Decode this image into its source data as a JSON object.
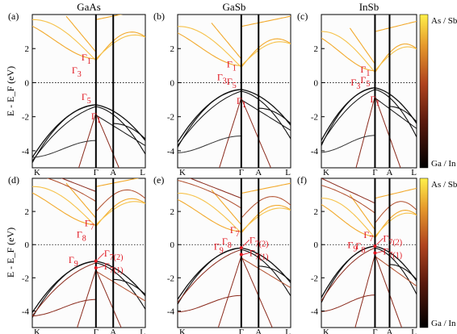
{
  "figure": {
    "ylabel": "E - E_F (eV)",
    "colorbar": {
      "top_label": "As / Sb",
      "bottom_label": "Ga / In"
    },
    "x_ticks": [
      "K",
      "Γ",
      "A",
      "L"
    ],
    "y_ticks": [
      "-4",
      "-2",
      "0",
      "2"
    ]
  },
  "chart_data": [
    {
      "type": "line",
      "panel": "(a)",
      "title": "GaAs",
      "ylim": [
        -5,
        4
      ],
      "xlabel": "",
      "ylabel": "E - E_F (eV)",
      "annotations": [
        {
          "text": "Γ",
          "sub": "1",
          "kind": "CB"
        },
        {
          "text": "Γ",
          "sub": "3",
          "kind": "CB"
        },
        {
          "text": "Γ",
          "sub": "5",
          "kind": "VB"
        },
        {
          "text": "Γ",
          "sub": "1",
          "kind": "VB"
        }
      ],
      "vbm_gamma": -1.3,
      "cbm_gamma": 1.2
    },
    {
      "type": "line",
      "panel": "(b)",
      "title": "GaSb",
      "ylim": [
        -5,
        4
      ],
      "annotations": [
        {
          "text": "Γ",
          "sub": "1",
          "kind": "CB"
        },
        {
          "text": "Γ",
          "sub": "3",
          "kind": "CB"
        },
        {
          "text": "Γ",
          "sub": "5",
          "kind": "VB"
        },
        {
          "text": "Γ",
          "sub": "1",
          "kind": "VB"
        }
      ],
      "vbm_gamma": -0.4,
      "cbm_gamma": 0.8
    },
    {
      "type": "line",
      "panel": "(c)",
      "title": "InSb",
      "ylim": [
        -5,
        4
      ],
      "annotations": [
        {
          "text": "Γ",
          "sub": "1",
          "kind": "CB"
        },
        {
          "text": "Γ",
          "sub": "3",
          "kind": "CB"
        },
        {
          "text": "Γ",
          "sub": "5",
          "kind": "VB"
        },
        {
          "text": "Γ",
          "sub": "1",
          "kind": "VB"
        }
      ],
      "vbm_gamma": -0.3,
      "cbm_gamma": 0.5
    },
    {
      "type": "line",
      "panel": "(d)",
      "ylim": [
        -5,
        4
      ],
      "annotations": [
        {
          "text": "Γ",
          "sub": "7",
          "kind": "CB"
        },
        {
          "text": "Γ",
          "sub": "8",
          "kind": "CB"
        },
        {
          "text": "Γ",
          "sub": "9",
          "kind": "VB"
        },
        {
          "text": "Γ",
          "sub": "7(2)",
          "kind": "VB"
        },
        {
          "text": "Γ",
          "sub": "7(1)",
          "kind": "VB"
        }
      ],
      "vbm_gamma": -1.0,
      "cbm_gamma": 1.0
    },
    {
      "type": "line",
      "panel": "(e)",
      "ylim": [
        -5,
        4
      ],
      "annotations": [
        {
          "text": "Γ",
          "sub": "7",
          "kind": "CB"
        },
        {
          "text": "Γ",
          "sub": "8",
          "kind": "CB"
        },
        {
          "text": "Γ",
          "sub": "9",
          "kind": "VB"
        },
        {
          "text": "Γ",
          "sub": "7(2)",
          "kind": "VB"
        },
        {
          "text": "Γ",
          "sub": "7(1)",
          "kind": "VB"
        }
      ],
      "vbm_gamma": -0.2,
      "cbm_gamma": 0.6
    },
    {
      "type": "line",
      "panel": "(f)",
      "ylim": [
        -5,
        4
      ],
      "annotations": [
        {
          "text": "Γ",
          "sub": "7",
          "kind": "CB"
        },
        {
          "text": "Γ",
          "sub": "8",
          "kind": "CB"
        },
        {
          "text": "Γ",
          "sub": "9",
          "kind": "VB"
        },
        {
          "text": "Γ",
          "sub": "7(2)",
          "kind": "VB"
        },
        {
          "text": "Γ",
          "sub": "7(1)",
          "kind": "VB"
        }
      ],
      "vbm_gamma": -0.1,
      "cbm_gamma": 0.3
    }
  ],
  "colors": {
    "cb": "#f2a92c",
    "cb_light": "#f6c24a",
    "vb": "#111111",
    "mixed": "#8a2a1c",
    "mixed2": "#b04d2b",
    "annot": "#e0141e"
  }
}
